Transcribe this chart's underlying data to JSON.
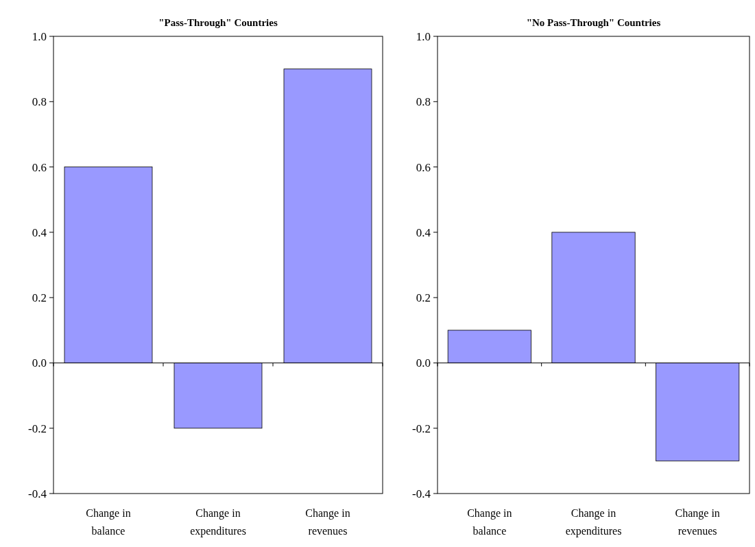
{
  "chart_data": [
    {
      "type": "bar",
      "title": "\"Pass-Through\" Countries",
      "categories": [
        "Change in balance",
        "Change in expenditures",
        "Change in revenues"
      ],
      "values": [
        0.6,
        -0.2,
        0.9
      ],
      "color": "#9999ff",
      "ylim": [
        -0.4,
        1.0
      ],
      "yticks": [
        {
          "value": -0.4,
          "label": "-0.4"
        },
        {
          "value": -0.2,
          "label": "-0.2"
        },
        {
          "value": 0,
          "label": "0.0"
        },
        {
          "value": 0.2,
          "label": "0.2"
        },
        {
          "value": 0.4,
          "label": "0.4"
        },
        {
          "value": 0.6,
          "label": "0.6"
        },
        {
          "value": 0.8,
          "label": "0.8"
        },
        {
          "value": 1.0,
          "label": "1.0"
        }
      ]
    },
    {
      "type": "bar",
      "title": "\"No Pass-Through\" Countries",
      "categories": [
        "Change in balance",
        "Change in expenditures",
        "Change in revenues"
      ],
      "values": [
        0.1,
        0.4,
        -0.3
      ],
      "color": "#9999ff",
      "ylim": [
        -0.4,
        1.0
      ],
      "yticks": [
        {
          "value": -0.4,
          "label": "-0.4"
        },
        {
          "value": -0.2,
          "label": "-0.2"
        },
        {
          "value": 0,
          "label": "0.0"
        },
        {
          "value": 0.2,
          "label": "0.2"
        },
        {
          "value": 0.4,
          "label": "0.4"
        },
        {
          "value": 0.6,
          "label": "0.6"
        },
        {
          "value": 0.8,
          "label": "0.8"
        },
        {
          "value": 1.0,
          "label": "1.0"
        }
      ]
    }
  ]
}
